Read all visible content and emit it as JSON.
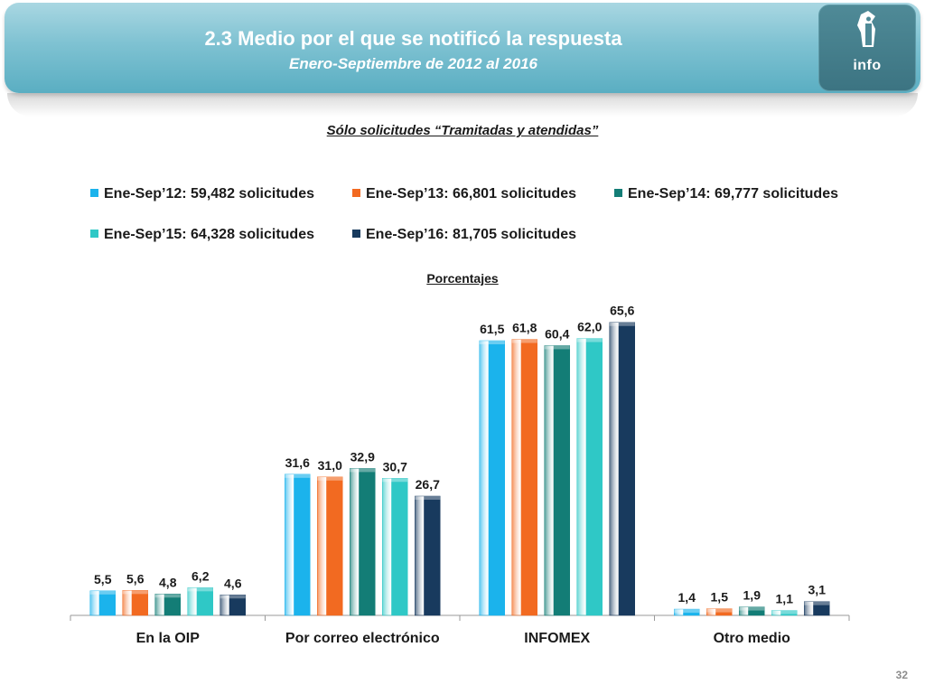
{
  "header": {
    "title": "2.3 Medio por el que se notificó la respuesta",
    "subtitle": "Enero-Septiembre de 2012 al 2016",
    "logo_text": "info"
  },
  "filter_note": "Sólo solicitudes “Tramitadas y atendidas”",
  "units_label": "Porcentajes",
  "page_number": "32",
  "chart_data": {
    "type": "bar",
    "categories": [
      "En la OIP",
      "Por correo electrónico",
      "INFOMEX",
      "Otro medio"
    ],
    "series": [
      {
        "name": "Ene-Sep’12: 59,482 solicitudes",
        "color": "#1bb3ec",
        "values": [
          5.5,
          31.6,
          61.5,
          1.4
        ],
        "labels": [
          "5,5",
          "31,6",
          "61,5",
          "1,4"
        ]
      },
      {
        "name": "Ene-Sep’13: 66,801 solicitudes",
        "color": "#f26a21",
        "values": [
          5.6,
          31.0,
          61.8,
          1.5
        ],
        "labels": [
          "5,6",
          "31,0",
          "61,8",
          "1,5"
        ]
      },
      {
        "name": "Ene-Sep’14: 69,777 solicitudes",
        "color": "#137d76",
        "values": [
          4.8,
          32.9,
          60.4,
          1.9
        ],
        "labels": [
          "4,8",
          "32,9",
          "60,4",
          "1,9"
        ]
      },
      {
        "name": "Ene-Sep’15: 64,328 solicitudes",
        "color": "#2fc8c6",
        "values": [
          6.2,
          30.7,
          62.0,
          1.1
        ],
        "labels": [
          "6,2",
          "30,7",
          "62,0",
          "1,1"
        ]
      },
      {
        "name": "Ene-Sep’16: 81,705 solicitudes",
        "color": "#183a5e",
        "values": [
          4.6,
          26.7,
          65.6,
          3.1
        ],
        "labels": [
          "4,6",
          "26,7",
          "65,6",
          "3,1"
        ]
      }
    ],
    "ylim": [
      0,
      70
    ],
    "grid": false,
    "legend_position": "top"
  }
}
